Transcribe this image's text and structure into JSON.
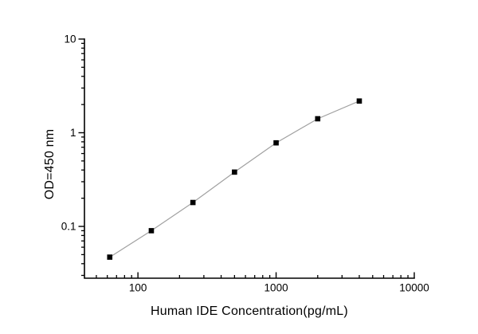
{
  "figure": {
    "background": "#ffffff"
  },
  "chart_data": {
    "type": "line",
    "title": "",
    "xlabel": "Human IDE Concentration(pg/mL)",
    "ylabel": "OD=450 nm",
    "x_scale": "log",
    "y_scale": "log",
    "xlim": [
      41,
      10000
    ],
    "ylim": [
      0.028,
      10
    ],
    "grid": false,
    "legend": "none",
    "marker": "filled-square",
    "x": [
      62.5,
      125,
      250,
      500,
      1000,
      2000,
      4000
    ],
    "series": [
      {
        "name": "OD=450 nm",
        "values": [
          0.047,
          0.09,
          0.18,
          0.38,
          0.78,
          1.41,
          2.18
        ]
      }
    ],
    "x_major_ticks": [
      100,
      1000,
      10000
    ],
    "x_major_tick_labels": [
      "100",
      "1000",
      "10000"
    ],
    "x_minor_ticks": [
      50,
      60,
      70,
      80,
      90,
      200,
      300,
      400,
      500,
      600,
      700,
      800,
      900,
      2000,
      3000,
      4000,
      5000,
      6000,
      7000,
      8000,
      9000
    ],
    "y_major_ticks": [
      0.1,
      1,
      10
    ],
    "y_major_tick_labels": [
      "0.1",
      "1",
      "10"
    ],
    "y_minor_ticks": [
      0.03,
      0.04,
      0.05,
      0.06,
      0.07,
      0.08,
      0.09,
      0.2,
      0.3,
      0.4,
      0.5,
      0.6,
      0.7,
      0.8,
      0.9,
      2,
      3,
      4,
      5,
      6,
      7,
      8,
      9
    ],
    "colors": {
      "axis": "#000000",
      "tick_text": "#000000",
      "line": "#a0a0a0",
      "marker": "#000000"
    }
  }
}
